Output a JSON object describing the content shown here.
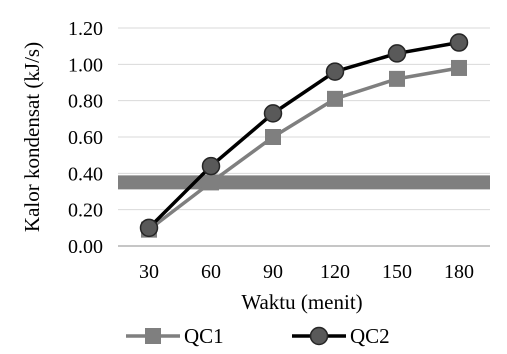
{
  "chart_data": {
    "type": "line",
    "xlabel": "Waktu (menit)",
    "ylabel": "Kalor kondensat (kJ/s)",
    "categories": [
      "30",
      "60",
      "90",
      "120",
      "150",
      "180"
    ],
    "ylim": [
      0,
      1.2
    ],
    "yticks": [
      "0.00",
      "0.20",
      "0.40",
      "0.60",
      "0.80",
      "1.00",
      "1.20"
    ],
    "grid": true,
    "legend_position": "bottom",
    "reference_band": {
      "y": 0.35,
      "color": "#7f7f7f"
    },
    "series": [
      {
        "name": "QC1",
        "values": [
          0.09,
          0.35,
          0.6,
          0.81,
          0.92,
          0.98
        ],
        "color": "#7f7f7f",
        "marker": "square"
      },
      {
        "name": "QC2",
        "values": [
          0.1,
          0.44,
          0.73,
          0.96,
          1.06,
          1.12
        ],
        "color": "#000000",
        "marker": "circle"
      }
    ]
  }
}
